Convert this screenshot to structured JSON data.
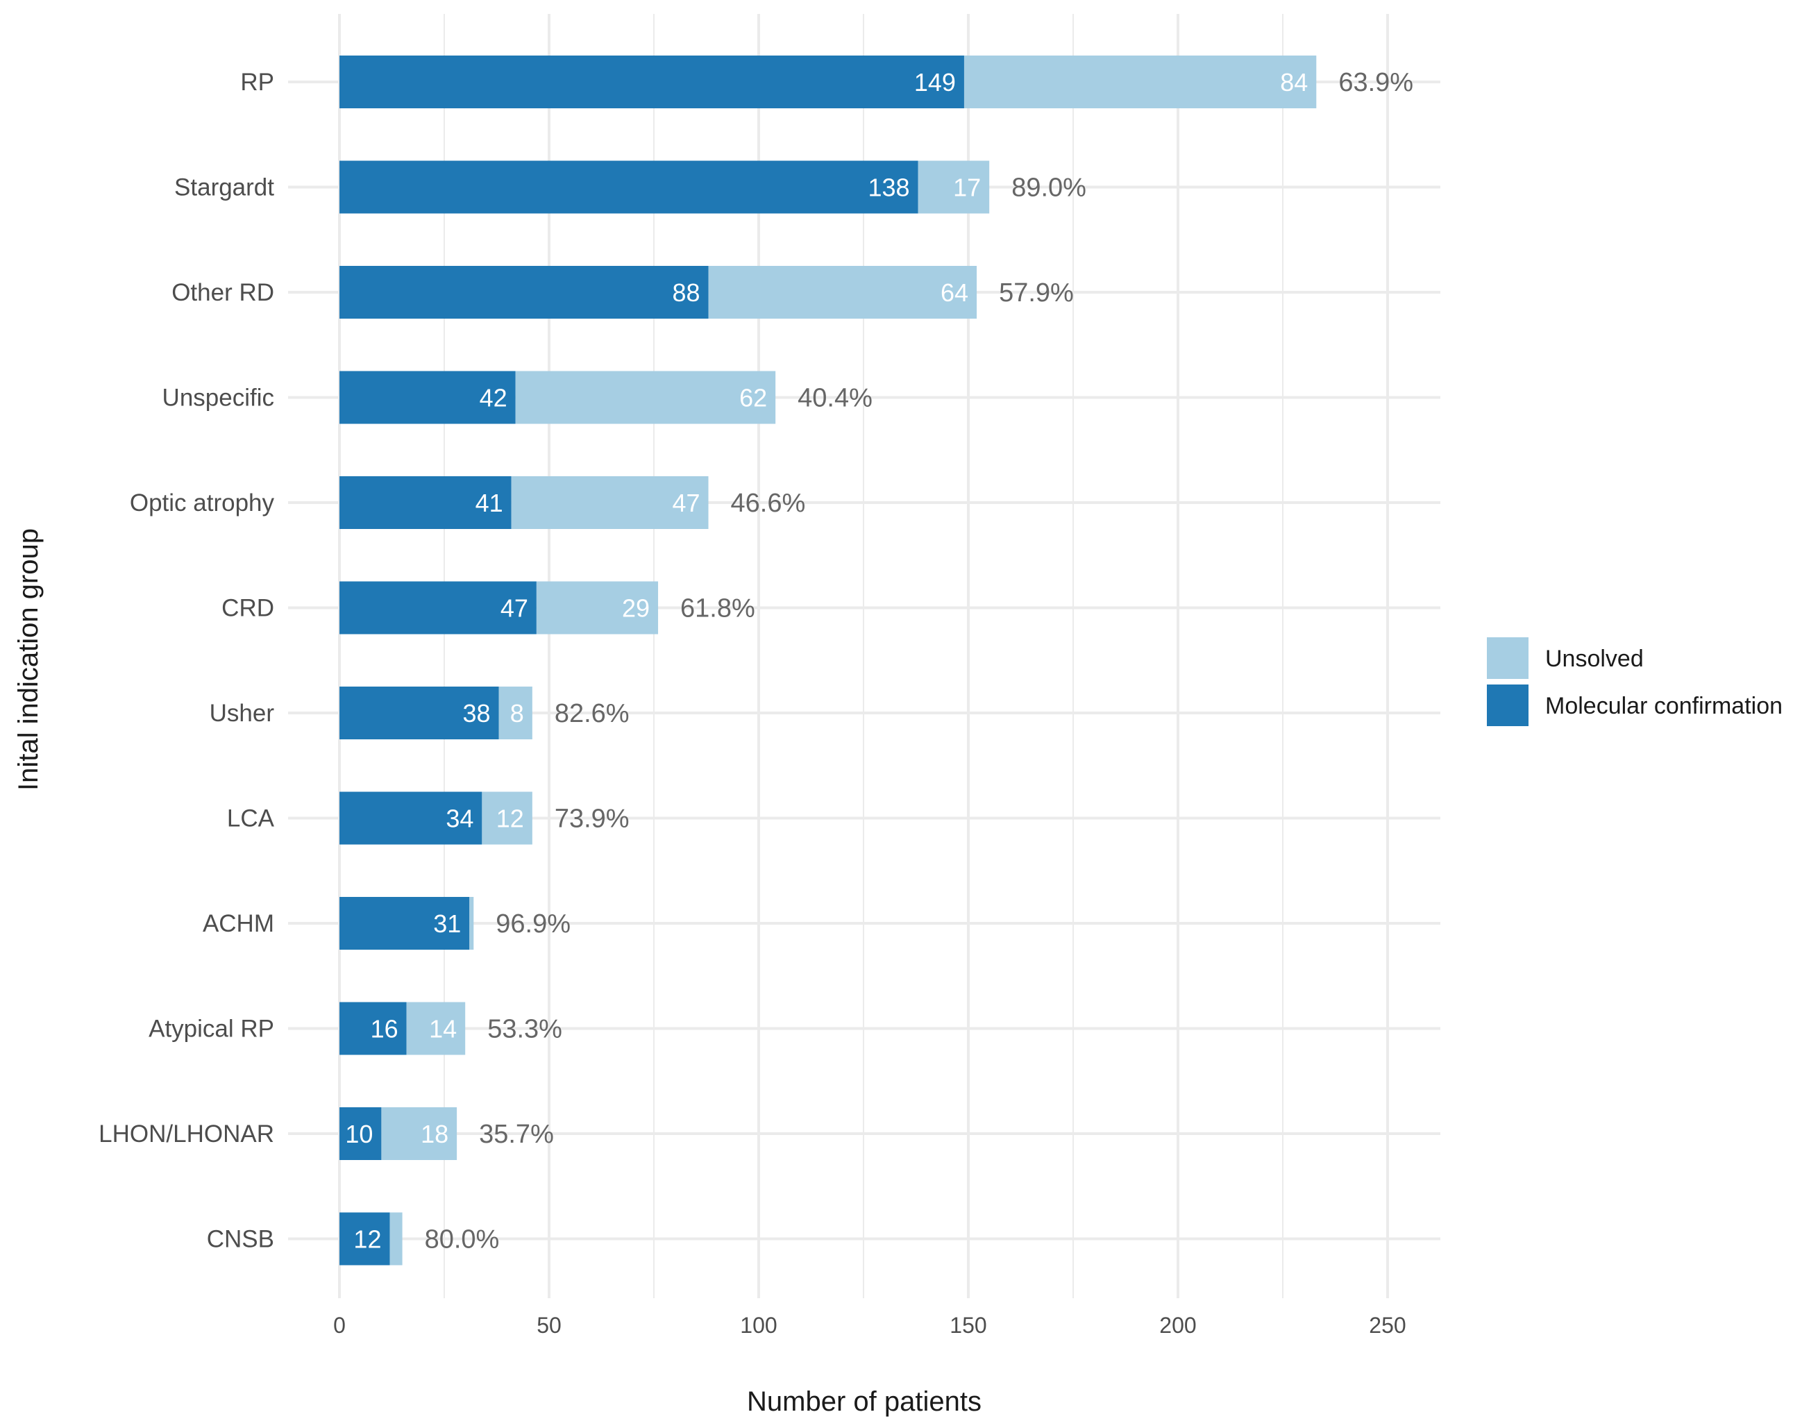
{
  "chart_data": {
    "type": "bar",
    "orientation": "horizontal",
    "stacked": true,
    "title": "",
    "xlabel": "Number of patients",
    "ylabel": "Inital indication group",
    "xlim": [
      0,
      262
    ],
    "xticks": [
      0,
      50,
      100,
      150,
      200,
      250
    ],
    "grid": true,
    "legend_position": "right",
    "categories": [
      "RP",
      "Stargardt",
      "Other RD",
      "Unspecific",
      "Optic atrophy",
      "CRD",
      "Usher",
      "LCA",
      "ACHM",
      "Atypical RP",
      "LHON/LHONAR",
      "CNSB"
    ],
    "series": [
      {
        "name": "Molecular confirmation",
        "color": "#1f78b4",
        "values": [
          149,
          138,
          88,
          42,
          41,
          47,
          38,
          34,
          31,
          16,
          10,
          12
        ],
        "labels": [
          "149",
          "138",
          "88",
          "42",
          "41",
          "47",
          "38",
          "34",
          "31",
          "16",
          "10",
          "12"
        ]
      },
      {
        "name": "Unsolved",
        "color": "#a6cee3",
        "values": [
          84,
          17,
          64,
          62,
          47,
          29,
          8,
          12,
          1,
          14,
          18,
          3
        ],
        "labels": [
          "84",
          "17",
          "64",
          "62",
          "47",
          "29",
          "8",
          "12",
          "",
          "14",
          "18",
          ""
        ]
      }
    ],
    "percent_labels": [
      "63.9%",
      "89.0%",
      "57.9%",
      "40.4%",
      "46.6%",
      "61.8%",
      "82.6%",
      "73.9%",
      "96.9%",
      "53.3%",
      "35.7%",
      "80.0%"
    ],
    "legend": [
      {
        "name": "Unsolved",
        "color": "#a6cee3"
      },
      {
        "name": "Molecular confirmation",
        "color": "#1f78b4"
      }
    ]
  }
}
